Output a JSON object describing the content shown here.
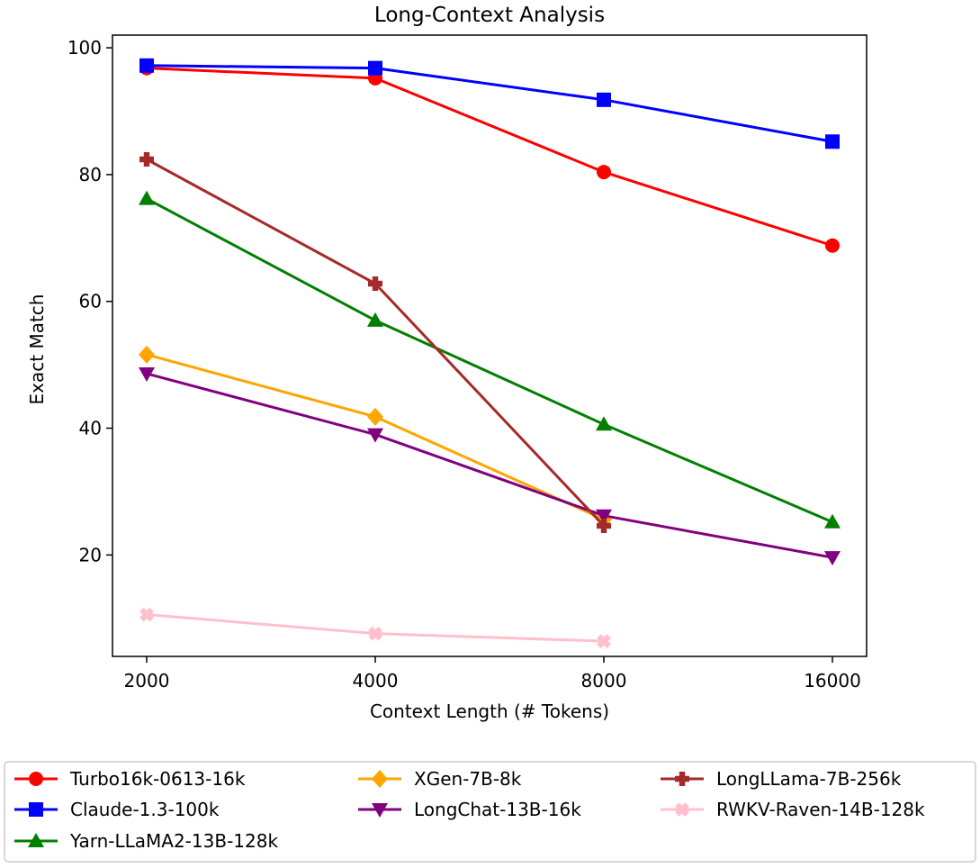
{
  "chart_data": {
    "type": "line",
    "title": "Long-Context Analysis",
    "xlabel": "Context Length (# Tokens)",
    "ylabel": "Exact Match",
    "x": [
      "2000",
      "4000",
      "8000",
      "16000"
    ],
    "x_scale": "categorical",
    "ylim": [
      4.0,
      102.0
    ],
    "y_ticks": [
      "20",
      "40",
      "60",
      "80",
      "100"
    ],
    "grid": false,
    "legend_placement": "below plot, 3 columns",
    "series": [
      {
        "name": "Turbo16k-0613-16k",
        "color": "#ff0000",
        "marker": "circle",
        "values": [
          96.8,
          95.2,
          80.4,
          68.8
        ]
      },
      {
        "name": "Claude-1.3-100k",
        "color": "#0000ff",
        "marker": "square",
        "values": [
          97.2,
          96.8,
          91.8,
          85.2
        ]
      },
      {
        "name": "Yarn-LLaMA2-13B-128k",
        "color": "#008000",
        "marker": "triangle-up",
        "values": [
          76.2,
          57.0,
          40.6,
          25.2
        ]
      },
      {
        "name": "XGen-7B-8k",
        "color": "#ffa500",
        "marker": "diamond",
        "values": [
          51.6,
          41.8,
          25.6,
          null
        ]
      },
      {
        "name": "LongChat-13B-16k",
        "color": "#800080",
        "marker": "triangle-down",
        "values": [
          48.6,
          39.0,
          26.2,
          19.6
        ]
      },
      {
        "name": "LongLLama-7B-256k",
        "color": "#a52a2a",
        "marker": "plus",
        "values": [
          82.4,
          62.8,
          24.6,
          null
        ]
      },
      {
        "name": "RWKV-Raven-14B-128k",
        "color": "#ffc0cb",
        "marker": "x",
        "values": [
          10.6,
          7.6,
          6.4,
          null
        ]
      }
    ]
  }
}
